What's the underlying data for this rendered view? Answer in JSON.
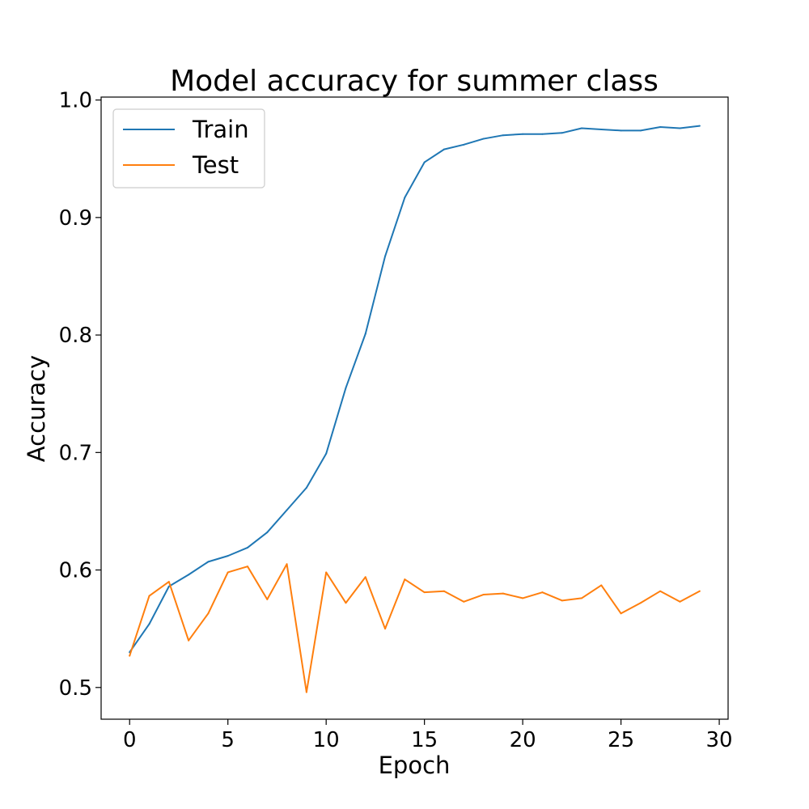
{
  "chart_data": {
    "type": "line",
    "title": "Model accuracy for summer class",
    "xlabel": "Epoch",
    "ylabel": "Accuracy",
    "xlim": [
      -1.45,
      30.45
    ],
    "ylim": [
      0.473,
      1.0025
    ],
    "xticks": [
      0,
      5,
      10,
      15,
      20,
      25,
      30
    ],
    "xtick_labels": [
      "0",
      "5",
      "10",
      "15",
      "20",
      "25",
      "30"
    ],
    "yticks": [
      0.5,
      0.6,
      0.7,
      0.8,
      0.9,
      1.0
    ],
    "ytick_labels": [
      "0.5",
      "0.6",
      "0.7",
      "0.8",
      "0.9",
      "1.0"
    ],
    "grid": false,
    "legend_position": "upper-left",
    "x": [
      0,
      1,
      2,
      3,
      4,
      5,
      6,
      7,
      8,
      9,
      10,
      11,
      12,
      13,
      14,
      15,
      16,
      17,
      18,
      19,
      20,
      21,
      22,
      23,
      24,
      25,
      26,
      27,
      28,
      29
    ],
    "series": [
      {
        "name": "Train",
        "color": "#1f77b4",
        "values": [
          0.53,
          0.554,
          0.586,
          0.596,
          0.607,
          0.612,
          0.619,
          0.632,
          0.651,
          0.67,
          0.699,
          0.755,
          0.801,
          0.867,
          0.917,
          0.947,
          0.958,
          0.962,
          0.967,
          0.97,
          0.971,
          0.971,
          0.972,
          0.976,
          0.975,
          0.974,
          0.974,
          0.977,
          0.976,
          0.978
        ]
      },
      {
        "name": "Test",
        "color": "#ff7f0e",
        "values": [
          0.527,
          0.578,
          0.59,
          0.54,
          0.563,
          0.598,
          0.603,
          0.575,
          0.605,
          0.496,
          0.598,
          0.572,
          0.594,
          0.55,
          0.592,
          0.581,
          0.582,
          0.573,
          0.579,
          0.58,
          0.576,
          0.581,
          0.574,
          0.576,
          0.587,
          0.563,
          0.572,
          0.582,
          0.573,
          0.582
        ]
      }
    ]
  }
}
